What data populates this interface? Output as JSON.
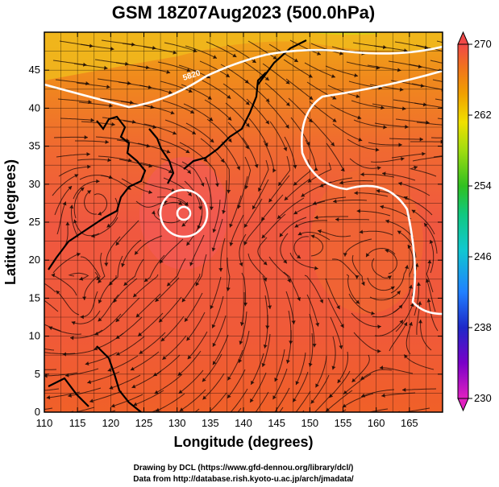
{
  "chart_data": {
    "type": "heatmap",
    "title": "GSM 18Z07Aug2023 (500.0hPa)",
    "xlabel": "Longitude (degrees)",
    "ylabel": "Latitude  (degrees)",
    "xlim": [
      110,
      170
    ],
    "ylim": [
      0,
      50
    ],
    "x_ticks": [
      "110",
      "115",
      "120",
      "125",
      "130",
      "135",
      "140",
      "145",
      "150",
      "155",
      "160",
      "165"
    ],
    "y_ticks": [
      "0",
      "5",
      "10",
      "15",
      "20",
      "25",
      "30",
      "35",
      "40",
      "45"
    ],
    "grid": true,
    "colorbar": {
      "range": [
        230,
        270
      ],
      "tick_labels": [
        "270",
        "262",
        "254",
        "246",
        "238",
        "230"
      ],
      "colors": [
        "#e020c0",
        "#7a00c8",
        "#1e28c8",
        "#2080ff",
        "#10c8d0",
        "#10c880",
        "#30c020",
        "#a0dc10",
        "#f0e000",
        "#f0a000",
        "#f07020",
        "#f04848"
      ]
    },
    "contour_labels": [
      "5820"
    ],
    "credits": [
      "Drawing by DCL (https://www.gfd-dennou.org/library/dcl/)",
      "Data from http://database.rish.kyoto-u.ac.jp/arch/jmadata/"
    ]
  }
}
